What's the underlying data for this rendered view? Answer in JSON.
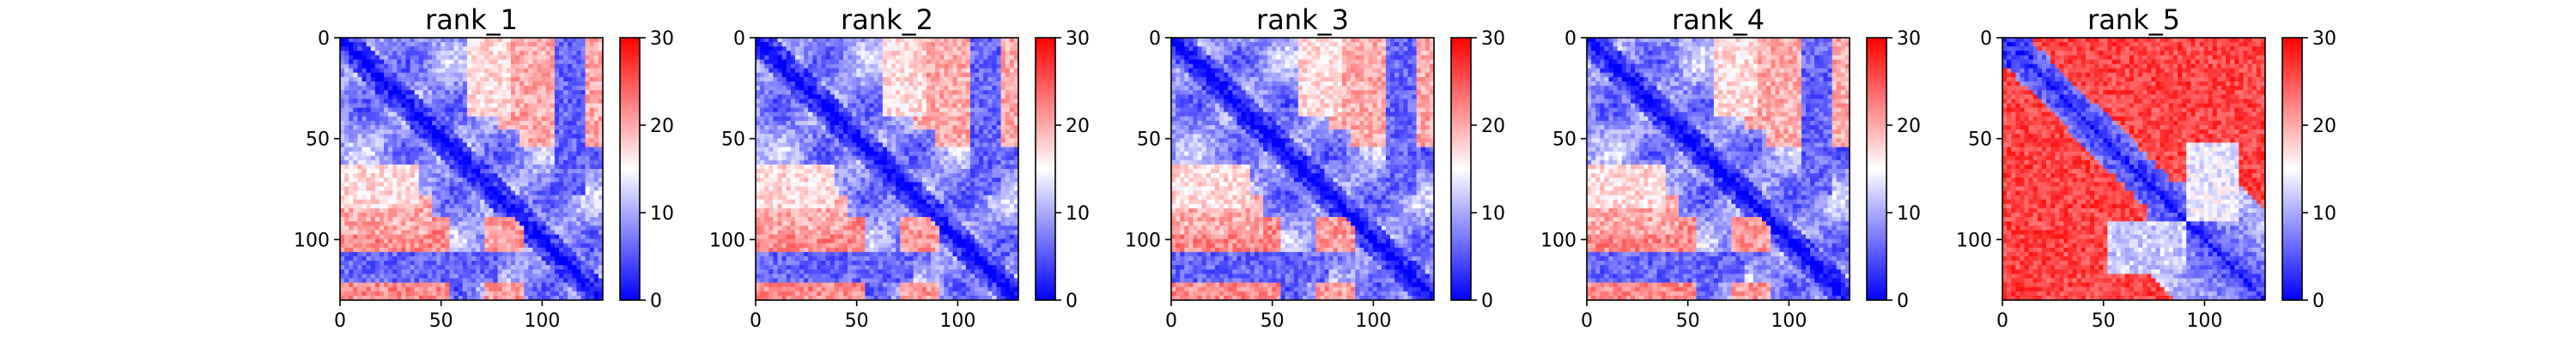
{
  "chart_data": [
    {
      "type": "heatmap",
      "title": "rank_1",
      "matrix_size": 130,
      "x_ticks": [
        0,
        50,
        100
      ],
      "y_ticks": [
        0,
        50,
        100
      ],
      "xlim": [
        0,
        130
      ],
      "ylim": [
        130,
        0
      ],
      "colorbar": {
        "min": 0,
        "max": 30,
        "ticks": [
          0,
          10,
          20,
          30
        ],
        "colormap": "bwr"
      },
      "variant": "pae_good"
    },
    {
      "type": "heatmap",
      "title": "rank_2",
      "matrix_size": 130,
      "x_ticks": [
        0,
        50,
        100
      ],
      "y_ticks": [
        0,
        50,
        100
      ],
      "xlim": [
        0,
        130
      ],
      "ylim": [
        130,
        0
      ],
      "colorbar": {
        "min": 0,
        "max": 30,
        "ticks": [
          0,
          10,
          20,
          30
        ],
        "colormap": "bwr"
      },
      "variant": "pae_good"
    },
    {
      "type": "heatmap",
      "title": "rank_3",
      "matrix_size": 130,
      "x_ticks": [
        0,
        50,
        100
      ],
      "y_ticks": [
        0,
        50,
        100
      ],
      "xlim": [
        0,
        130
      ],
      "ylim": [
        130,
        0
      ],
      "colorbar": {
        "min": 0,
        "max": 30,
        "ticks": [
          0,
          10,
          20,
          30
        ],
        "colormap": "bwr"
      },
      "variant": "pae_good"
    },
    {
      "type": "heatmap",
      "title": "rank_4",
      "matrix_size": 130,
      "x_ticks": [
        0,
        50,
        100
      ],
      "y_ticks": [
        0,
        50,
        100
      ],
      "xlim": [
        0,
        130
      ],
      "ylim": [
        130,
        0
      ],
      "colorbar": {
        "min": 0,
        "max": 30,
        "ticks": [
          0,
          10,
          20,
          30
        ],
        "colormap": "bwr"
      },
      "variant": "pae_good"
    },
    {
      "type": "heatmap",
      "title": "rank_5",
      "matrix_size": 130,
      "x_ticks": [
        0,
        50,
        100
      ],
      "y_ticks": [
        0,
        50,
        100
      ],
      "xlim": [
        0,
        130
      ],
      "ylim": [
        130,
        0
      ],
      "colorbar": {
        "min": 0,
        "max": 30,
        "ticks": [
          0,
          10,
          20,
          30
        ],
        "colormap": "bwr"
      },
      "variant": "pae_poor"
    }
  ],
  "colors": {
    "low": "#0000ff",
    "mid": "#ffffff",
    "high": "#ff0000"
  }
}
